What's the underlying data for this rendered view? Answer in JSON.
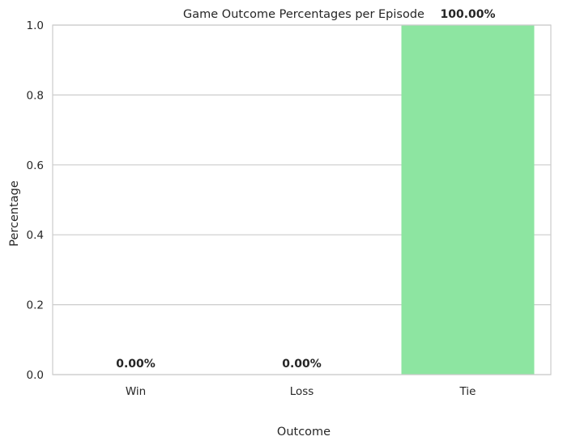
{
  "chart_data": {
    "type": "bar",
    "title": "Game Outcome Percentages per Episode",
    "xlabel": "Outcome",
    "ylabel": "Percentage",
    "categories": [
      "Win",
      "Loss",
      "Tie"
    ],
    "values": [
      0.0,
      0.0,
      1.0
    ],
    "data_labels": [
      "0.00%",
      "0.00%",
      "100.00%"
    ],
    "ylim": [
      0,
      1.0
    ],
    "yticks": [
      "0.0",
      "0.2",
      "0.4",
      "0.6",
      "0.8",
      "1.0"
    ],
    "grid": "horizontal",
    "bar_colors": [
      "#ff9f9b",
      "#a1c9f4",
      "#8de5a1"
    ]
  }
}
